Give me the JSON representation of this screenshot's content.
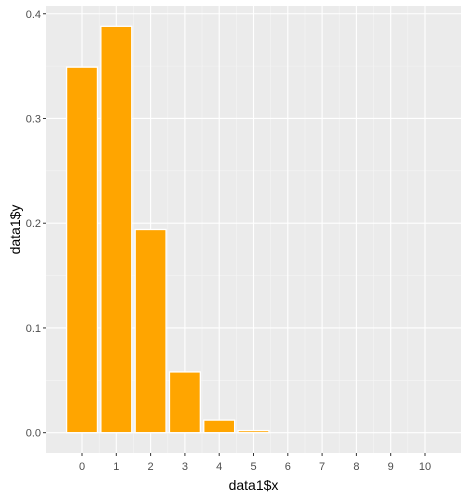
{
  "chart_data": {
    "type": "bar",
    "title": "",
    "xlabel": "data1$x",
    "ylabel": "data1$y",
    "categories": [
      "0",
      "1",
      "2",
      "3",
      "4",
      "5",
      "6",
      "7",
      "8",
      "9",
      "10"
    ],
    "x": [
      0,
      1,
      2,
      3,
      4,
      5,
      6,
      7,
      8,
      9,
      10
    ],
    "values": [
      0.349,
      0.388,
      0.194,
      0.058,
      0.012,
      0.002,
      0.0,
      0.0,
      0.0,
      0.0,
      0.0
    ],
    "xlim": [
      -1.05,
      11.05
    ],
    "ylim": [
      -0.0194,
      0.4074
    ],
    "yticks": [
      0.0,
      0.1,
      0.2,
      0.3,
      0.4
    ],
    "ytick_labels": [
      "0.0",
      "0.1",
      "0.2",
      "0.3",
      "0.4"
    ],
    "xticks": [
      0,
      1,
      2,
      3,
      4,
      5,
      6,
      7,
      8,
      9,
      10
    ],
    "grid": true,
    "legend": "none",
    "colors": {
      "bar_fill": "#FFA500",
      "bar_outline": "#FFFFFF",
      "panel_background": "#EBEBEB",
      "grid_major": "#FFFFFF",
      "grid_minor": "#F5F5F5",
      "tick_text": "#4D4D4D",
      "tick_mark": "#333333",
      "axis_title": "#000000"
    }
  }
}
